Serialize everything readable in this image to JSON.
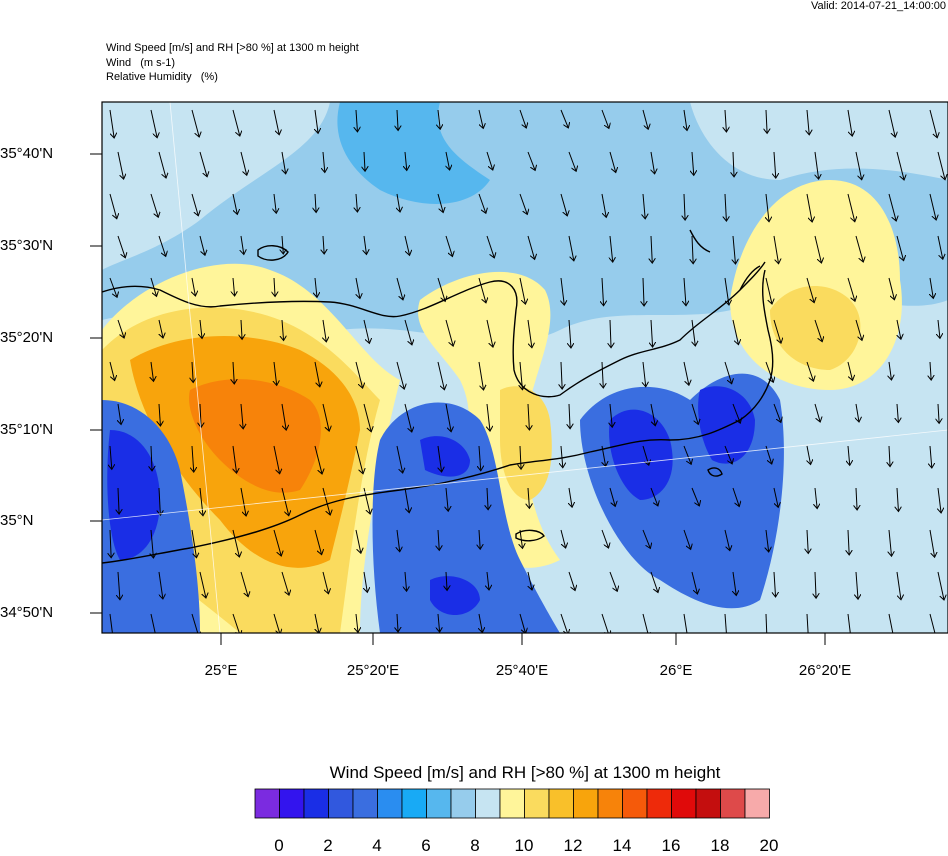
{
  "valid_label": "Valid: 2014-07-21_14:00:00",
  "header": {
    "line1": "Wind Speed [m/s] and RH [>80 %] at 1300 m height",
    "line2": "Wind   (m s-1)",
    "line3": "Relative Humidity   (%)"
  },
  "lat_labels": [
    "35°40'N",
    "35°30'N",
    "35°20'N",
    "35°10'N",
    "35°N",
    "34°50'N"
  ],
  "lon_labels": [
    "25°E",
    "25°20'E",
    "25°40'E",
    "26°E",
    "26°20'E"
  ],
  "colorbar": {
    "title": "Wind Speed [m/s] and RH [>80 %] at 1300 m height",
    "tick_labels": [
      "0",
      "2",
      "4",
      "6",
      "8",
      "10",
      "12",
      "14",
      "16",
      "18",
      "20"
    ],
    "colors": [
      "#7b2be0",
      "#3314ee",
      "#1a2ee6",
      "#3158de",
      "#3a6ee0",
      "#2a8df0",
      "#18aaf5",
      "#56b7ee",
      "#96ccec",
      "#c6e4f2",
      "#fff59a",
      "#fadb5e",
      "#f9c02a",
      "#f8a40c",
      "#f7830a",
      "#f55a0a",
      "#ee2a0a",
      "#e00a0a",
      "#c40e0e",
      "#de4a4a",
      "#f7aaaa"
    ]
  },
  "map_content": {
    "field": "wind speed (m/s), RH > 80 %",
    "fill_colors": {
      "ocean_light": "#c6e4f2",
      "ocean_mid": "#96ccec",
      "ocean_cyan": "#56b7ee",
      "fast_yellow": "#fff59a",
      "fast_gold": "#fadb5e",
      "fast_orange": "#f8a40c",
      "fast_deep": "#f7830a",
      "calm_blue": "#3a6ee0",
      "calm_dark": "#1a2ee6"
    },
    "wind_direction": "mostly southward (north wind)",
    "coastline": "Crete"
  }
}
